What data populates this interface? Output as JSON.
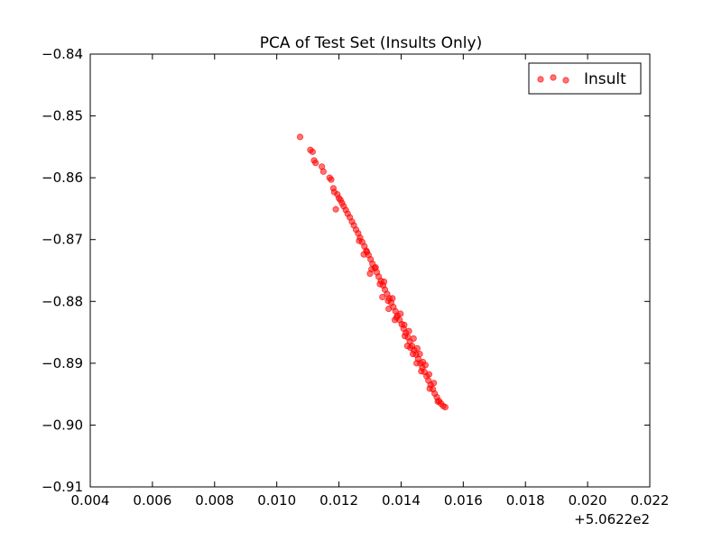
{
  "chart_data": {
    "type": "scatter",
    "title": "PCA of Test Set (Insults Only)",
    "xlabel": "",
    "ylabel": "",
    "x_offset_label": "+5.0622e2",
    "xlim": [
      0.004,
      0.022
    ],
    "ylim": [
      -0.91,
      -0.84
    ],
    "xticks": [
      0.004,
      0.006,
      0.008,
      0.01,
      0.012,
      0.014,
      0.016,
      0.018,
      0.02,
      0.022
    ],
    "xtick_labels": [
      "0.004",
      "0.006",
      "0.008",
      "0.010",
      "0.012",
      "0.014",
      "0.016",
      "0.018",
      "0.020",
      "0.022"
    ],
    "yticks": [
      -0.84,
      -0.85,
      -0.86,
      -0.87,
      -0.88,
      -0.89,
      -0.9,
      -0.91
    ],
    "ytick_labels": [
      "−0.84",
      "−0.85",
      "−0.86",
      "−0.87",
      "−0.88",
      "−0.89",
      "−0.90",
      "−0.91"
    ],
    "grid": false,
    "legend_position": "top-right",
    "series": [
      {
        "name": "Insult",
        "color": "#ff0000",
        "points": [
          [
            0.01075,
            -0.8534
          ],
          [
            0.01108,
            -0.8555
          ],
          [
            0.01115,
            -0.8558
          ],
          [
            0.0112,
            -0.8572
          ],
          [
            0.01125,
            -0.8576
          ],
          [
            0.01145,
            -0.8582
          ],
          [
            0.0115,
            -0.859
          ],
          [
            0.0117,
            -0.86
          ],
          [
            0.01175,
            -0.8603
          ],
          [
            0.01182,
            -0.8617
          ],
          [
            0.01185,
            -0.8623
          ],
          [
            0.0119,
            -0.8651
          ],
          [
            0.01195,
            -0.8627
          ],
          [
            0.012,
            -0.8633
          ],
          [
            0.01205,
            -0.8636
          ],
          [
            0.0121,
            -0.8641
          ],
          [
            0.01215,
            -0.8646
          ],
          [
            0.01222,
            -0.8652
          ],
          [
            0.01228,
            -0.8658
          ],
          [
            0.01235,
            -0.8664
          ],
          [
            0.01242,
            -0.8671
          ],
          [
            0.01248,
            -0.8677
          ],
          [
            0.01255,
            -0.8684
          ],
          [
            0.01262,
            -0.869
          ],
          [
            0.01268,
            -0.8697
          ],
          [
            0.01275,
            -0.8704
          ],
          [
            0.01282,
            -0.8711
          ],
          [
            0.01288,
            -0.8718
          ],
          [
            0.01295,
            -0.8725
          ],
          [
            0.01302,
            -0.8732
          ],
          [
            0.01308,
            -0.8739
          ],
          [
            0.01315,
            -0.8746
          ],
          [
            0.01322,
            -0.8753
          ],
          [
            0.01328,
            -0.876
          ],
          [
            0.01335,
            -0.8767
          ],
          [
            0.01342,
            -0.8774
          ],
          [
            0.01348,
            -0.8781
          ],
          [
            0.01355,
            -0.8788
          ],
          [
            0.01362,
            -0.8795
          ],
          [
            0.01368,
            -0.8802
          ],
          [
            0.01375,
            -0.8809
          ],
          [
            0.01382,
            -0.8816
          ],
          [
            0.01388,
            -0.8823
          ],
          [
            0.01395,
            -0.883
          ],
          [
            0.01402,
            -0.8837
          ],
          [
            0.01408,
            -0.8844
          ],
          [
            0.01415,
            -0.8851
          ],
          [
            0.01422,
            -0.8858
          ],
          [
            0.01428,
            -0.8865
          ],
          [
            0.01435,
            -0.8872
          ],
          [
            0.01442,
            -0.8879
          ],
          [
            0.01448,
            -0.8886
          ],
          [
            0.01455,
            -0.8893
          ],
          [
            0.01462,
            -0.89
          ],
          [
            0.01468,
            -0.8907
          ],
          [
            0.01475,
            -0.8914
          ],
          [
            0.01482,
            -0.8921
          ],
          [
            0.01488,
            -0.8928
          ],
          [
            0.01495,
            -0.8935
          ],
          [
            0.01502,
            -0.8942
          ],
          [
            0.01508,
            -0.8949
          ],
          [
            0.01515,
            -0.8955
          ],
          [
            0.01522,
            -0.8961
          ],
          [
            0.01528,
            -0.8965
          ],
          [
            0.01535,
            -0.8969
          ],
          [
            0.01542,
            -0.8971
          ],
          [
            0.01265,
            -0.8702
          ],
          [
            0.0129,
            -0.872
          ],
          [
            0.01318,
            -0.8745
          ],
          [
            0.01345,
            -0.8768
          ],
          [
            0.01372,
            -0.8795
          ],
          [
            0.01398,
            -0.882
          ],
          [
            0.01425,
            -0.8848
          ],
          [
            0.01452,
            -0.8876
          ],
          [
            0.01478,
            -0.8903
          ],
          [
            0.01505,
            -0.8932
          ],
          [
            0.0128,
            -0.8724
          ],
          [
            0.01305,
            -0.8748
          ],
          [
            0.01332,
            -0.8772
          ],
          [
            0.01358,
            -0.8799
          ],
          [
            0.01385,
            -0.8826
          ],
          [
            0.01412,
            -0.8856
          ],
          [
            0.01438,
            -0.8885
          ],
          [
            0.01465,
            -0.8913
          ],
          [
            0.01492,
            -0.8941
          ],
          [
            0.01518,
            -0.8962
          ],
          [
            0.0134,
            -0.8793
          ],
          [
            0.0138,
            -0.883
          ],
          [
            0.0142,
            -0.8872
          ],
          [
            0.0146,
            -0.8885
          ],
          [
            0.0144,
            -0.886
          ],
          [
            0.0141,
            -0.8838
          ],
          [
            0.0136,
            -0.8812
          ],
          [
            0.013,
            -0.8755
          ],
          [
            0.0147,
            -0.8898
          ],
          [
            0.0149,
            -0.8918
          ],
          [
            0.0145,
            -0.89
          ],
          [
            0.0143,
            -0.8875
          ]
        ]
      }
    ]
  }
}
